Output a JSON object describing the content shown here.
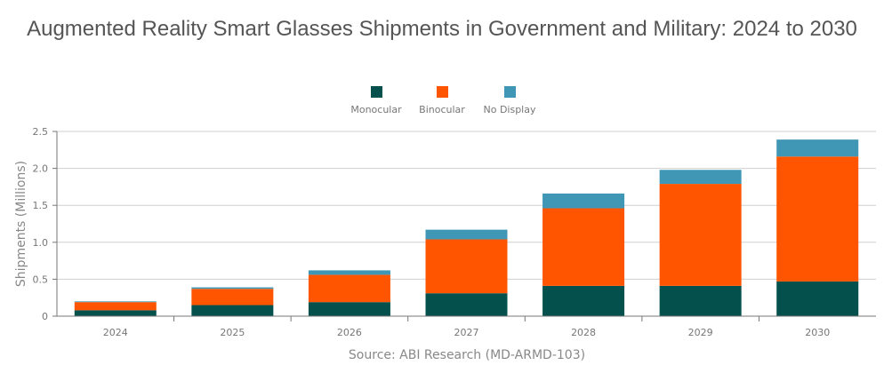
{
  "chart_data": {
    "type": "bar",
    "stacked": true,
    "title": "Augmented Reality Smart Glasses Shipments in Government and Military: 2024 to 2030",
    "xlabel": "",
    "ylabel": "Shipments (Millions)",
    "source": "Source: ABI Research (MD-ARMD-103)",
    "ylim": [
      0,
      2.5
    ],
    "yticks": [
      "0",
      "0.5",
      "1.0",
      "1.5",
      "2.0",
      "2.5"
    ],
    "grid": true,
    "legend_position": "top",
    "categories": [
      "2024",
      "2025",
      "2026",
      "2027",
      "2028",
      "2029",
      "2030"
    ],
    "series": [
      {
        "name": "Monocular",
        "color": "#03504c",
        "values": [
          0.08,
          0.15,
          0.19,
          0.31,
          0.41,
          0.41,
          0.47
        ]
      },
      {
        "name": "Binocular",
        "color": "#ff5500",
        "values": [
          0.11,
          0.22,
          0.37,
          0.73,
          1.05,
          1.38,
          1.69
        ]
      },
      {
        "name": "No Display",
        "color": "#3f96b5",
        "values": [
          0.01,
          0.02,
          0.06,
          0.13,
          0.2,
          0.19,
          0.23
        ]
      }
    ]
  }
}
